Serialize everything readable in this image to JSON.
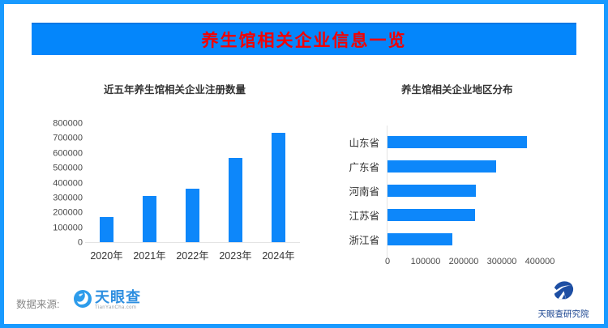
{
  "banner": {
    "title": "养生馆相关企业信息一览"
  },
  "chart_data": [
    {
      "type": "bar",
      "title": "近五年养生馆相关企业注册数量",
      "categories": [
        "2020年",
        "2021年",
        "2022年",
        "2023年",
        "2024年"
      ],
      "values": [
        170000,
        310000,
        360000,
        570000,
        740000
      ],
      "ylim": [
        0,
        800000
      ],
      "yticks": [
        0,
        100000,
        200000,
        300000,
        400000,
        500000,
        600000,
        700000,
        800000
      ],
      "grid": "off",
      "bar_color": "#0d87fa"
    },
    {
      "type": "bar-horizontal",
      "title": "养生馆相关企业地区分布",
      "categories": [
        "山东省",
        "广东省",
        "河南省",
        "江苏省",
        "浙江省"
      ],
      "values": [
        365000,
        285000,
        232000,
        230000,
        170000
      ],
      "xlim": [
        0,
        500000
      ],
      "xticks": [
        0,
        100000,
        200000,
        300000,
        400000
      ],
      "grid": "off",
      "bar_color": "#0d87fa"
    }
  ],
  "footer": {
    "source_label": "数据来源:",
    "tyc_logo_text": "天眼查",
    "tyc_logo_sub": "TianYanCha.com",
    "institute_label": "天眼查研究院"
  },
  "colors": {
    "frame_border": "#189aff",
    "banner_bg": "#0486fb",
    "banner_text": "#f40000",
    "bar_blue": "#0d87fa",
    "tyc_blue": "#2e8fe0",
    "institute_navy": "#1d4ea3"
  }
}
